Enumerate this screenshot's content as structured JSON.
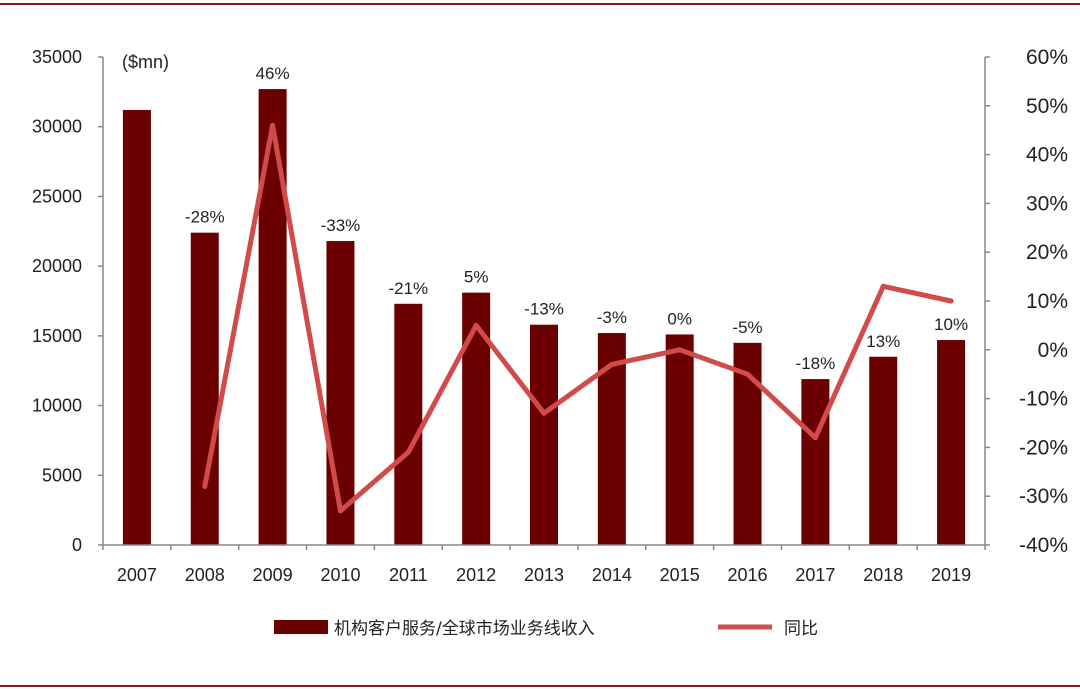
{
  "chart_data": {
    "type": "bar+line",
    "categories": [
      "2007",
      "2008",
      "2009",
      "2010",
      "2011",
      "2012",
      "2013",
      "2014",
      "2015",
      "2016",
      "2017",
      "2018",
      "2019"
    ],
    "series": [
      {
        "name": "机构客户服务/全球市场业务线收入",
        "type": "bar",
        "axis": "left",
        "color": "#6b0000",
        "values": [
          31200,
          22400,
          32700,
          21800,
          17300,
          18100,
          15800,
          15200,
          15100,
          14500,
          11900,
          13500,
          14700
        ]
      },
      {
        "name": "同比",
        "type": "line",
        "axis": "right",
        "color": "#d24b4b",
        "values": [
          null,
          -28,
          46,
          -33,
          -21,
          5,
          -13,
          -3,
          0,
          -5,
          -18,
          13,
          10
        ],
        "labels": [
          "",
          "-28%",
          "46%",
          "-33%",
          "-21%",
          "5%",
          "-13%",
          "-3%",
          "0%",
          "-5%",
          "-18%",
          "13%",
          "10%"
        ]
      }
    ],
    "unit_label": "($mn)",
    "y_left": {
      "min": 0,
      "max": 35000,
      "ticks": [
        0,
        5000,
        10000,
        15000,
        20000,
        25000,
        30000,
        35000
      ]
    },
    "y_right": {
      "min": -40,
      "max": 60,
      "ticks": [
        -40,
        -30,
        -20,
        -10,
        0,
        10,
        20,
        30,
        40,
        50,
        60
      ],
      "tick_labels": [
        "-40%",
        "-30%",
        "-20%",
        "-10%",
        "0%",
        "10%",
        "20%",
        "30%",
        "40%",
        "50%",
        "60%"
      ]
    },
    "legend_position": "bottom",
    "grid": false
  },
  "colors": {
    "frame": "#8b1a1a",
    "axis": "#888888",
    "text": "#222222"
  }
}
